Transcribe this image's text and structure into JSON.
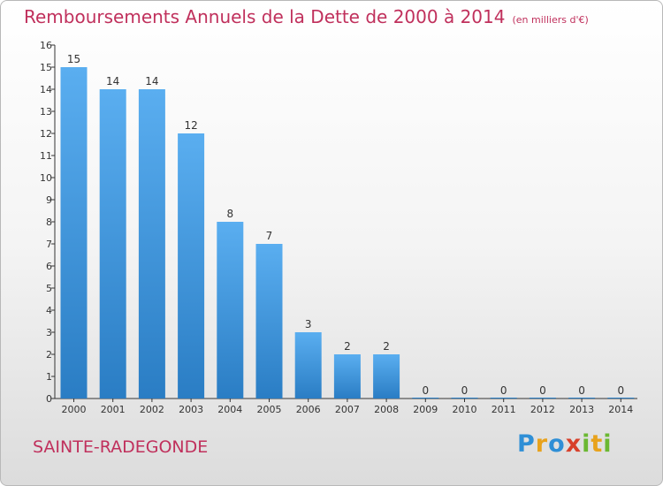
{
  "title": "Remboursements Annuels de la Dette de 2000 à 2014",
  "unit": "(en milliers d'€)",
  "commune": "SAINTE-RADEGONDE",
  "logo": {
    "text": "Proxiti",
    "letters": [
      {
        "ch": "P",
        "color": "#2f8fd6"
      },
      {
        "ch": "r",
        "color": "#e8a21c"
      },
      {
        "ch": "o",
        "color": "#2f8fd6"
      },
      {
        "ch": "x",
        "color": "#d8402a"
      },
      {
        "ch": "i",
        "color": "#6bb832"
      },
      {
        "ch": "t",
        "color": "#e8a21c"
      },
      {
        "ch": "i",
        "color": "#6bb832"
      }
    ]
  },
  "chart_data": {
    "type": "bar",
    "title": "Remboursements Annuels de la Dette de 2000 à 2014",
    "categories": [
      "2000",
      "2001",
      "2002",
      "2003",
      "2004",
      "2005",
      "2006",
      "2007",
      "2008",
      "2009",
      "2010",
      "2011",
      "2012",
      "2013",
      "2014"
    ],
    "values": [
      15,
      14,
      14,
      12,
      8,
      7,
      3,
      2,
      2,
      0,
      0,
      0,
      0,
      0,
      0
    ],
    "yticks": [
      "0",
      "1",
      "2",
      "3",
      "4",
      "5",
      "6",
      "7",
      "8",
      "9",
      "10",
      "11",
      "12",
      "13",
      "14",
      "15",
      "16"
    ],
    "ylim": [
      0,
      16
    ],
    "grid": false,
    "bar_color": "#4f9fe0"
  }
}
